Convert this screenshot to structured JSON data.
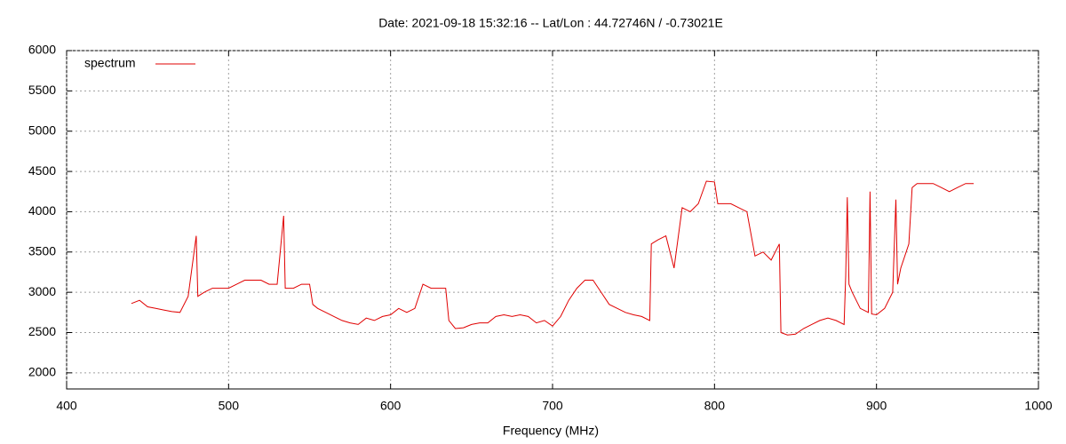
{
  "chart_data": {
    "type": "line",
    "title": "Date: 2021-09-18 15:32:16  --  Lat/Lon : 44.72746N / -0.73021E",
    "x_label": "Frequency (MHz)",
    "xlim": [
      400,
      1000
    ],
    "xticks": [
      400,
      500,
      600,
      700,
      800,
      900,
      1000
    ],
    "ylim": [
      1800,
      6000
    ],
    "yticks": [
      2000,
      2500,
      3000,
      3500,
      4000,
      4500,
      5000,
      5500,
      6000
    ],
    "grid": true,
    "legend": "top-left",
    "x": [
      440,
      445,
      450,
      455,
      460,
      465,
      470,
      475,
      480,
      481,
      485,
      490,
      495,
      500,
      505,
      510,
      515,
      520,
      525,
      530,
      534,
      535,
      540,
      545,
      550,
      552,
      555,
      560,
      565,
      570,
      575,
      580,
      585,
      590,
      595,
      600,
      605,
      610,
      615,
      620,
      625,
      630,
      634,
      636,
      640,
      645,
      650,
      655,
      660,
      665,
      670,
      675,
      680,
      685,
      690,
      695,
      700,
      705,
      710,
      715,
      720,
      725,
      730,
      735,
      740,
      745,
      750,
      755,
      760,
      761,
      765,
      770,
      775,
      780,
      785,
      790,
      795,
      800,
      802,
      805,
      810,
      815,
      820,
      825,
      830,
      835,
      840,
      841,
      845,
      850,
      855,
      860,
      865,
      870,
      875,
      880,
      881,
      882,
      883,
      885,
      890,
      895,
      896,
      897,
      900,
      905,
      910,
      912,
      913,
      915,
      920,
      922,
      925,
      930,
      935,
      940,
      945,
      950,
      955,
      960
    ],
    "series": [
      {
        "name": "spectrum",
        "color": "#e00000",
        "values": [
          2860,
          2900,
          2820,
          2800,
          2780,
          2760,
          2750,
          2950,
          3700,
          2950,
          3000,
          3050,
          3050,
          3050,
          3100,
          3150,
          3150,
          3150,
          3100,
          3100,
          3950,
          3050,
          3050,
          3100,
          3100,
          2850,
          2800,
          2750,
          2700,
          2650,
          2620,
          2600,
          2680,
          2650,
          2700,
          2720,
          2800,
          2750,
          2800,
          3100,
          3050,
          3050,
          3050,
          2650,
          2550,
          2560,
          2600,
          2620,
          2620,
          2700,
          2720,
          2700,
          2720,
          2700,
          2620,
          2650,
          2580,
          2700,
          2900,
          3050,
          3150,
          3150,
          3000,
          2850,
          2800,
          2750,
          2720,
          2700,
          2650,
          3600,
          3650,
          3700,
          3300,
          4050,
          4000,
          4100,
          4380,
          4370,
          4100,
          4100,
          4100,
          4050,
          4000,
          3450,
          3500,
          3400,
          3600,
          2500,
          2470,
          2480,
          2550,
          2600,
          2650,
          2680,
          2650,
          2600,
          3200,
          4180,
          3100,
          3000,
          2800,
          2750,
          4250,
          2730,
          2720,
          2800,
          3000,
          4150,
          3100,
          3300,
          3600,
          4300,
          4350,
          4350,
          4350,
          4300,
          4250,
          4300,
          4350,
          4350
        ]
      }
    ]
  }
}
